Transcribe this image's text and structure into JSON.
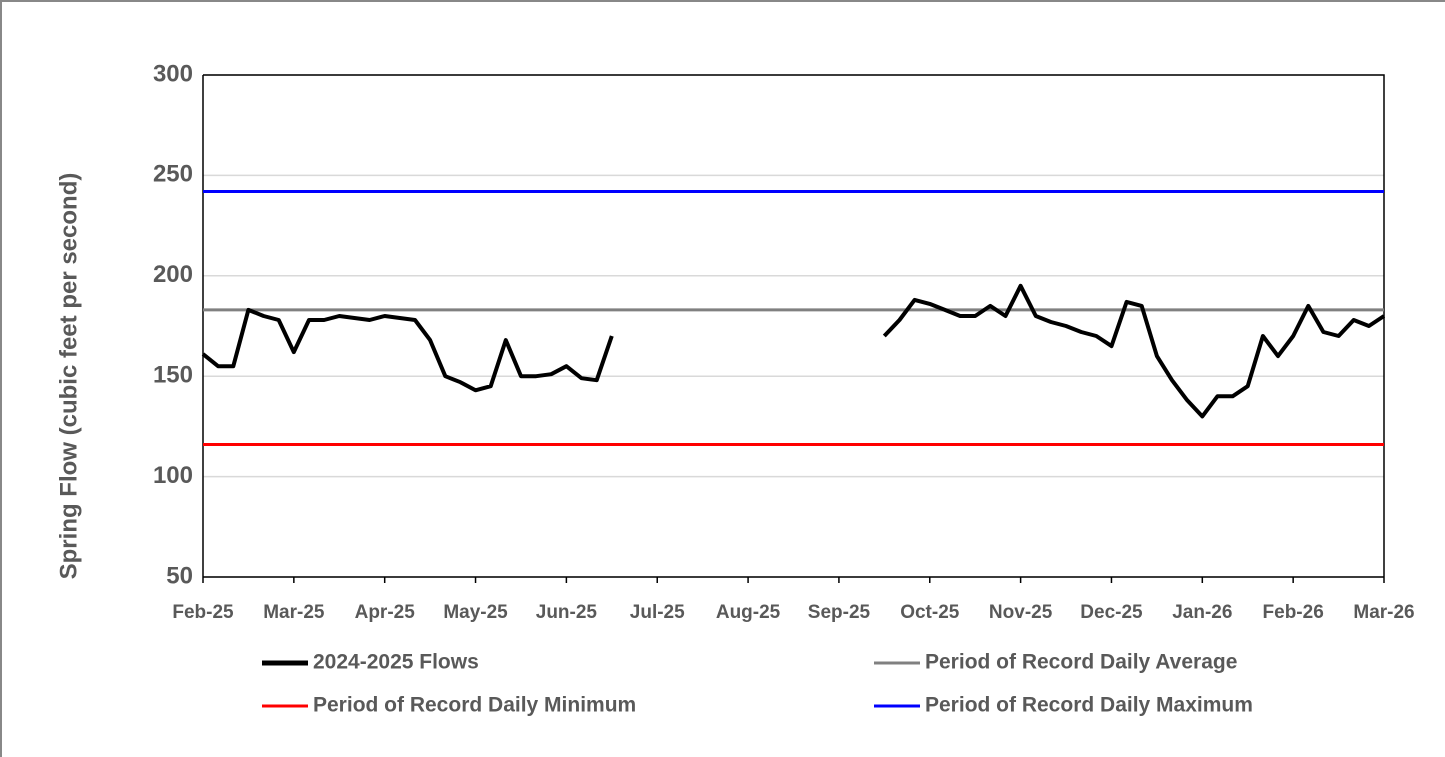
{
  "chart_data": {
    "type": "line",
    "y_label": "Spring Flow (cubic feet per second)",
    "categories": [
      "Feb-25",
      null,
      null,
      null,
      null,
      null,
      "Mar-25",
      null,
      null,
      null,
      null,
      null,
      "Apr-25",
      null,
      null,
      null,
      null,
      null,
      "May-25",
      null,
      null,
      null,
      null,
      null,
      "Jun-25",
      null,
      null,
      null,
      null,
      null,
      "Jul-25",
      null,
      null,
      null,
      null,
      null,
      "Aug-25",
      null,
      null,
      null,
      null,
      null,
      "Sep-25",
      null,
      null,
      null,
      null,
      null,
      "Oct-25",
      null,
      null,
      null,
      null,
      null,
      "Nov-25",
      null,
      null,
      null,
      null,
      null,
      "Dec-25",
      null,
      null,
      null,
      null,
      null,
      "Jan-26",
      null,
      null,
      null,
      null,
      null,
      "Feb-26",
      null,
      null,
      null,
      null,
      null,
      "Mar-26"
    ],
    "series": [
      {
        "name": "2024-2025 Flows",
        "color": "#000000",
        "values": [
          161,
          155,
          155,
          183,
          180,
          178,
          162,
          178,
          178,
          180,
          179,
          178,
          180,
          179,
          178,
          168,
          150,
          147,
          143,
          145,
          168,
          150,
          150,
          151,
          155,
          149,
          148,
          170,
          null,
          null,
          null,
          null,
          null,
          null,
          null,
          null,
          null,
          null,
          null,
          null,
          null,
          null,
          null,
          null,
          null,
          170,
          178,
          188,
          186,
          183,
          180,
          180,
          185,
          180,
          195,
          180,
          177,
          175,
          172,
          170,
          165,
          187,
          185,
          160,
          148,
          138,
          130,
          140,
          140,
          145,
          170,
          160,
          170,
          185,
          172,
          170,
          178,
          175,
          180
        ]
      },
      {
        "name": "Period of Record Daily Average",
        "color": "#808080",
        "values": [
          183,
          183,
          183,
          183,
          183,
          183,
          183,
          183,
          183,
          183,
          183,
          183,
          183,
          183,
          183,
          183,
          183,
          183,
          183,
          183,
          183,
          183,
          183,
          183,
          183,
          183,
          183,
          183,
          183,
          183,
          183,
          183,
          183,
          183,
          183,
          183,
          183,
          183,
          183,
          183,
          183,
          183,
          183,
          183,
          183,
          183,
          183,
          183,
          183,
          183,
          183,
          183,
          183,
          183,
          183,
          183,
          183,
          183,
          183,
          183,
          183,
          183,
          183,
          183,
          183,
          183,
          183,
          183,
          183,
          183,
          183,
          183,
          183,
          183,
          183,
          183,
          183,
          183,
          183
        ]
      },
      {
        "name": "Period of Record Daily Minimum",
        "color": "#ff0000",
        "values": [
          116,
          116,
          116,
          116,
          116,
          116,
          116,
          116,
          116,
          116,
          116,
          116,
          116,
          116,
          116,
          116,
          116,
          116,
          116,
          116,
          116,
          116,
          116,
          116,
          116,
          116,
          116,
          116,
          116,
          116,
          116,
          116,
          116,
          116,
          116,
          116,
          116,
          116,
          116,
          116,
          116,
          116,
          116,
          116,
          116,
          116,
          116,
          116,
          116,
          116,
          116,
          116,
          116,
          116,
          116,
          116,
          116,
          116,
          116,
          116,
          116,
          116,
          116,
          116,
          116,
          116,
          116,
          116,
          116,
          116,
          116,
          116,
          116,
          116,
          116,
          116,
          116,
          116,
          116
        ]
      },
      {
        "name": "Period of Record Daily Maximum",
        "color": "#0000ff",
        "values": [
          242,
          242,
          242,
          242,
          242,
          242,
          242,
          242,
          242,
          242,
          242,
          242,
          242,
          242,
          242,
          242,
          242,
          242,
          242,
          242,
          242,
          242,
          242,
          242,
          242,
          242,
          242,
          242,
          242,
          242,
          242,
          242,
          242,
          242,
          242,
          242,
          242,
          242,
          242,
          242,
          242,
          242,
          242,
          242,
          242,
          242,
          242,
          242,
          242,
          242,
          242,
          242,
          242,
          242,
          242,
          242,
          242,
          242,
          242,
          242,
          242,
          242,
          242,
          242,
          242,
          242,
          242,
          242,
          242,
          242,
          242,
          242,
          242,
          242,
          242,
          242,
          242,
          242,
          242
        ]
      }
    ],
    "ylim": [
      50,
      300
    ],
    "yticks": [
      50,
      100,
      150,
      200,
      250,
      300
    ],
    "grid": true
  }
}
